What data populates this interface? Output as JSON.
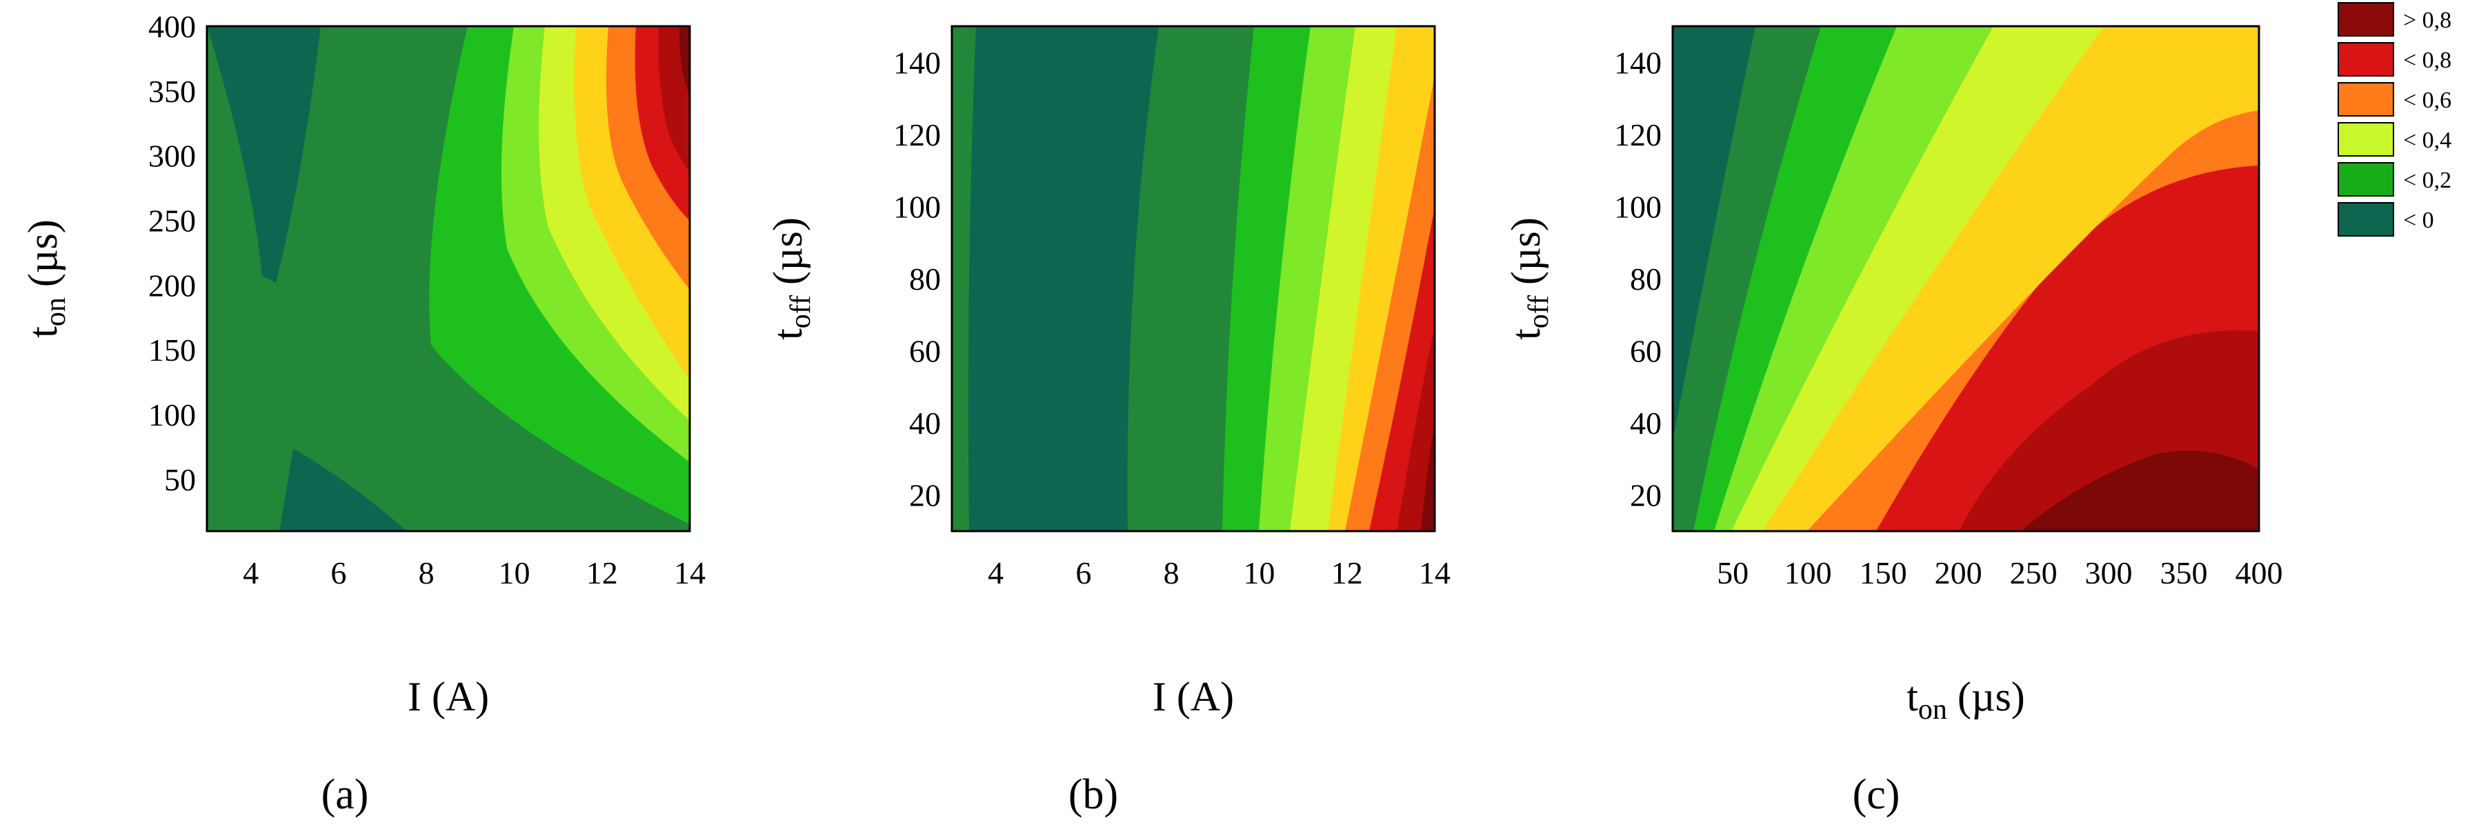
{
  "chart_data": [
    {
      "type": "heatmap",
      "panel_label": "(a)",
      "x_axis": {
        "var": "I",
        "unit": " (A)",
        "sub": ""
      },
      "y_axis": {
        "var": "t",
        "sub": "on",
        "unit": " (µs)"
      },
      "xlim": [
        3,
        14
      ],
      "ylim": [
        10,
        400
      ],
      "xticks": [
        4,
        6,
        8,
        10,
        12,
        14
      ],
      "yticks": [
        50,
        100,
        150,
        200,
        250,
        300,
        350,
        400
      ],
      "surface": "response of I (A) and t_on (µs)",
      "regions": [
        {
          "level": "< 0",
          "approx_extent": "I 3.5–6.5 A at t_on 190–400 µs; I 5–8 A at t_on 10–70 µs"
        },
        {
          "level": "< 0,2",
          "approx_extent": "I up to ~9 A at high t_on, up to ~14 A at t_on 10 µs"
        },
        {
          "level": "< 0,4",
          "approx_extent": "band near I 10–11 A"
        },
        {
          "level": "< 0,6",
          "approx_extent": "band near I 11.5–12 A, t_on > 100 µs"
        },
        {
          "level": "< 0,8",
          "approx_extent": "band near I 12.5–13 A, t_on > 150 µs"
        },
        {
          "level": "> 0,8",
          "approx_extent": "I > 13.5 A, t_on > 200 µs"
        }
      ]
    },
    {
      "type": "heatmap",
      "panel_label": "(b)",
      "x_axis": {
        "var": "I",
        "unit": " (A)",
        "sub": ""
      },
      "y_axis": {
        "var": "t",
        "sub": "off",
        "unit": " (µs)"
      },
      "xlim": [
        3,
        14
      ],
      "ylim": [
        10,
        150
      ],
      "xticks": [
        4,
        6,
        8,
        10,
        12,
        14
      ],
      "yticks": [
        20,
        40,
        60,
        80,
        100,
        120,
        140
      ],
      "surface": "response of I (A) and t_off (µs)",
      "regions": [
        {
          "level": "< 0",
          "approx_extent": "I 3.5–7 A (all t_off)"
        },
        {
          "level": "< 0,2",
          "approx_extent": "I 7–9.5 A"
        },
        {
          "level": "< 0,4",
          "approx_extent": "I 9.5–11.5 A"
        },
        {
          "level": "< 0,6",
          "approx_extent": "I 11.5–13 A"
        },
        {
          "level": "< 0,8",
          "approx_extent": "I 12.5–14 A at t_off < 100 µs"
        },
        {
          "level": "> 0,8",
          "approx_extent": "I > 13.5 A at t_off < 40 µs"
        }
      ]
    },
    {
      "type": "heatmap",
      "panel_label": "(c)",
      "x_axis": {
        "var": "t",
        "sub": "on",
        "unit": " (µs)"
      },
      "y_axis": {
        "var": "t",
        "sub": "off",
        "unit": " (µs)"
      },
      "xlim": [
        10,
        400
      ],
      "ylim": [
        10,
        150
      ],
      "xticks": [
        50,
        100,
        150,
        200,
        250,
        300,
        350,
        400
      ],
      "yticks": [
        20,
        40,
        60,
        80,
        100,
        120,
        140
      ],
      "surface": "response of t_on (µs) and t_off (µs)",
      "regions": [
        {
          "level": "< 0",
          "approx_extent": "t_on < 50 µs, t_off > 40 µs"
        },
        {
          "level": "< 0,2",
          "approx_extent": "t_on 20–140 µs"
        },
        {
          "level": "< 0,4",
          "approx_extent": "t_on 100–220 µs"
        },
        {
          "level": "< 0,6",
          "approx_extent": "t_on 150–400 µs, t_off > 60 µs"
        },
        {
          "level": "< 0,8",
          "approx_extent": "t_on 200–400 µs, t_off < 90 µs"
        },
        {
          "level": "> 0,8",
          "approx_extent": "t_on > 230 µs, t_off < 40 µs"
        }
      ]
    }
  ],
  "legend": {
    "items": [
      {
        "label": "> 0,8",
        "color": "#8b0a0a"
      },
      {
        "label": "< 0,8",
        "color": "#d81414"
      },
      {
        "label": "< 0,6",
        "color": "#ff7a18"
      },
      {
        "label": "< 0,4",
        "color": "#c8f82c"
      },
      {
        "label": "< 0,2",
        "color": "#19ac19"
      },
      {
        "label": "< 0",
        "color": "#0f6650"
      }
    ]
  },
  "palette": {
    "c0": "#0f6650",
    "c1": "#23873a",
    "c2": "#1ec01e",
    "c3": "#7fe828",
    "c4": "#d0f52a",
    "c5": "#ffd21a",
    "c6": "#ff7a18",
    "c7": "#d81414",
    "c8": "#b00c0c",
    "c9": "#7c0808"
  }
}
